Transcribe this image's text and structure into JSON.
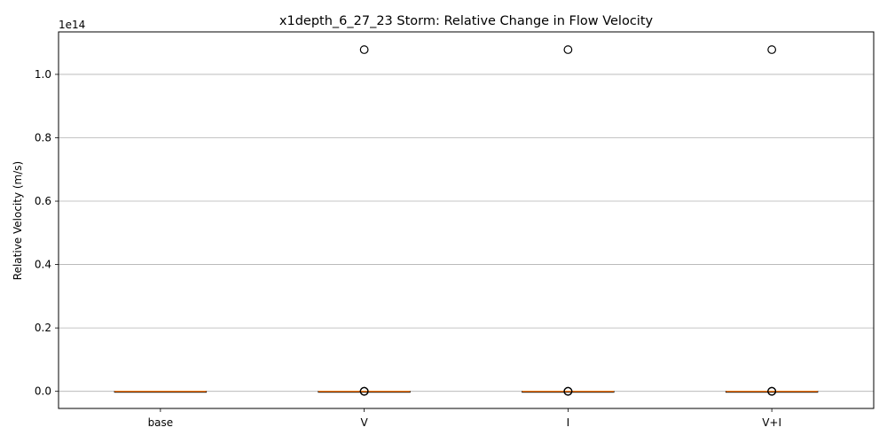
{
  "chart_data": {
    "type": "boxplot",
    "title": "x1depth_6_27_23 Storm: Relative Change in Flow Velocity",
    "xlabel": "",
    "ylabel": "Relative Velocity (m/s)",
    "y_offset_label": "1e14",
    "y_scale_factor": 100000000000000.0,
    "ylim": [
      -0.054,
      1.134
    ],
    "yticks": [
      0.0,
      0.2,
      0.4,
      0.6,
      0.8,
      1.0
    ],
    "ytick_labels": [
      "0.0",
      "0.2",
      "0.4",
      "0.6",
      "0.8",
      "1.0"
    ],
    "grid": "horizontal",
    "categories": [
      "base",
      "V",
      "I",
      "V+I"
    ],
    "boxes": [
      {
        "label": "base",
        "q1": 0.0,
        "median": 0.0,
        "q3": 0.0,
        "whisker_low": 0.0,
        "whisker_high": 0.0,
        "outliers": []
      },
      {
        "label": "V",
        "q1": 0.0,
        "median": 0.0,
        "q3": 0.0,
        "whisker_low": 0.0,
        "whisker_high": 0.0,
        "outliers": [
          1.078,
          0.0,
          0.0,
          0.0
        ]
      },
      {
        "label": "I",
        "q1": 0.0,
        "median": 0.0,
        "q3": 0.0,
        "whisker_low": 0.0,
        "whisker_high": 0.0,
        "outliers": [
          1.078,
          0.0,
          0.0,
          0.0
        ]
      },
      {
        "label": "V+I",
        "q1": 0.0,
        "median": 0.0,
        "q3": 0.0,
        "whisker_low": 0.0,
        "whisker_high": 0.0,
        "outliers": [
          1.078,
          0.0,
          0.0,
          0.0
        ]
      }
    ],
    "colors": {
      "median": "#ff7f0e",
      "box": "#000000",
      "grid": "#b0b0b0",
      "outlier": "#000000"
    }
  }
}
